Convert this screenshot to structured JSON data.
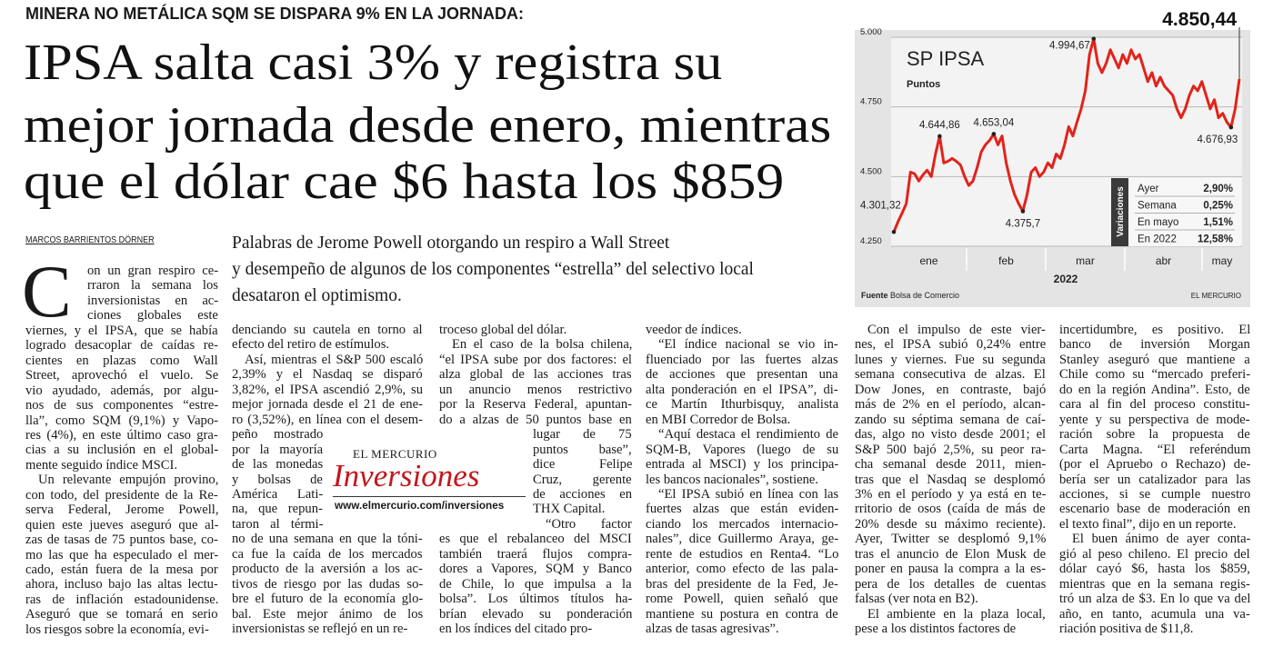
{
  "kicker": "MINERA NO METÁLICA SQM SE DISPARA 9% EN LA JORNADA:",
  "headline": [
    "IPSA salta casi 3% y registra su",
    "mejor jornada desde enero, mientras",
    "que el dólar cae $6 hasta los $859"
  ],
  "byline": "MARCOS BARRIENTOS DÖRNER",
  "deck": [
    "Palabras de Jerome Powell otorgando un respiro a Wall Street",
    "y desempeño de algunos de los componentes “estrella” del selectivo local",
    "desataron el optimismo."
  ],
  "body": {
    "drop_cap": "C",
    "columns": [
      [
        [
          "on un gran respiro ce-",
          "rraron la semana los",
          "inversionistas en ac-",
          "ciones globales este",
          "viernes, y el IPSA, que se había",
          "logrado desacoplar de caídas re-",
          "cientes en plazas como Wall",
          "Street, aprovechó el vuelo. Se",
          "vio ayudado, además, por algu-",
          "nos de sus componentes “estre-",
          "lla”, como SQM (9,1%) y Vapo-",
          "res (4%), en este último caso gra-",
          "cias a su inclusión en el global-",
          "mente seguido índice MSCI."
        ],
        [
          "Un relevante empujón provino,",
          "con todo, del presidente de la Re-",
          "serva Federal, Jerome Powell,",
          "quien este jueves aseguró que al-",
          "zas de tasas de 75 puntos base, co-",
          "mo las que ha especulado el mer-",
          "cado, están fuera de la mesa por",
          "ahora, incluso bajo las altas lectu-",
          "ras de inflación estadounidense.",
          "Aseguró que se tomará en serio",
          "los riesgos sobre la economía, evi-"
        ]
      ],
      [
        [
          "denciando su cautela en torno al",
          "efecto del retiro de estímulos."
        ],
        [
          "Así, mientras el S&P 500 escaló",
          "2,39% y el Nasdaq se disparó",
          "3,82%, el IPSA ascendió 2,9%, su",
          "mejor jornada desde el 21 de ene-",
          "ro (3,52%), en línea con el desem-",
          "peño mostrado",
          "por la mayoría",
          "de las monedas",
          "y bolsas de",
          "América Lati-",
          "na, que repun-",
          "taron al térmi-",
          "no de una semana en que la tóni-",
          "ca fue la caída de los mercados",
          "producto de la aversión a los ac-",
          "tivos de riesgo por las dudas so-",
          "bre el futuro de la economía glo-",
          "bal. Este mejor ánimo de los",
          "inversionistas se reflejó en un re-"
        ]
      ],
      [
        [
          "troceso global del dólar."
        ],
        [
          "En el caso de la bolsa chilena,",
          "“el IPSA sube por dos factores: el",
          "alza global de las acciones tras",
          "un anuncio menos restrictivo",
          "por la Reserva Federal, apuntan-",
          "do a alzas de 50 puntos base en",
          "lugar de 75",
          "puntos base”,",
          "dice Felipe",
          "Cruz, gerente",
          "de acciones en",
          "THX Capital."
        ],
        [
          "“Otro factor",
          "es que el rebalanceo del MSCI",
          "también traerá flujos compra-",
          "dores a Vapores, SQM y Banco",
          "de Chile, lo que impulsa a la",
          "bolsa”. Los últimos títulos ha-",
          "brían elevado su ponderación",
          "en los índices del citado pro-"
        ]
      ],
      [
        [
          "veedor de índices."
        ],
        [
          "“El índice nacional se vio in-",
          "fluenciado por las fuertes alzas",
          "de acciones que presentan una",
          "alta ponderación en el IPSA”, di-",
          "ce Martín Ithurbisquy, analista",
          "en MBI Corredor de Bolsa."
        ],
        [
          "“Aquí destaca el rendimiento de",
          "SQM-B, Vapores (luego de su",
          "entrada al MSCI) y los principa-",
          "les bancos nacionales”, sostiene."
        ],
        [
          "“El IPSA subió en línea con las",
          "fuertes alzas que están eviden-",
          "ciando los mercados internacio-",
          "nales”, dice Guillermo Araya, ge-",
          "rente de estudios en Renta4. “Lo",
          "anterior, como efecto de las pala-",
          "bras del presidente de la Fed, Je-",
          "rome Powell, quien señaló que",
          "mantiene su postura en contra de",
          "alzas de tasas agresivas”."
        ]
      ],
      [
        [
          "Con el impulso de este vier-",
          "nes, el IPSA subió 0,24% entre",
          "lunes y viernes. Fue su segunda",
          "semana consecutiva de alzas. El",
          "Dow Jones, en contraste, bajó",
          "más de 2% en el período, alcan-",
          "zando su séptima semana de caí-",
          "das, algo no visto desde 2001; el",
          "S&P 500 bajó 2,5%, su peor ra-",
          "cha semanal desde 2011, mien-",
          "tras que el Nasdaq se desplomó",
          "3% en el período y ya está en te-",
          "rritorio de osos (caída de más de",
          "20% desde su máximo reciente).",
          "Ayer, Twitter se desplomó 9,1%",
          "tras el anuncio de Elon Musk de",
          "poner en pausa la compra a la es-",
          "pera de los detalles de cuentas",
          "falsas (ver nota en B2)."
        ],
        [
          "El ambiente en la plaza local,",
          "pese a los distintos factores de"
        ]
      ],
      [
        [
          "incertidumbre, es positivo. El",
          "banco de inversión Morgan",
          "Stanley aseguró que mantiene a",
          "Chile como su “mercado preferi-",
          "do en la región Andina”. Esto, de",
          "cara al fin del proceso constitu-",
          "yente y su perspectiva de mode-",
          "ración sobre la propuesta de",
          "Carta Magna. “El referéndum",
          "(por el Apruebo o Rechazo) de-",
          "bería ser un catalizador para las",
          "acciones, si se cumple nuestro",
          "escenario base de moderación en",
          "el texto final”, dijo en un reporte."
        ],
        [
          "El buen ánimo de ayer conta-",
          "gió al peso chileno. El precio del",
          "dólar cayó $6, hasta los $859,",
          "mientras que en la semana regis-",
          "tró un alza de $3. En lo que va del",
          "año, en tanto, acumula una va-",
          "riación positiva de $11,8."
        ]
      ]
    ]
  },
  "promo": {
    "brand": "EL MERCURIO",
    "section": "Inversiones",
    "url": "www.elmercurio.com/inversiones"
  },
  "chart_data": {
    "type": "line",
    "title": "SP IPSA",
    "subtitle": "Puntos",
    "x_labels": [
      "ene",
      "feb",
      "mar",
      "abr",
      "may"
    ],
    "x_axis_label": "2022",
    "color": "#e2231a",
    "values": [
      4301.32,
      4338,
      4370,
      4403,
      4516,
      4510,
      4484,
      4506,
      4523,
      4500,
      4581,
      4644.86,
      4549,
      4555,
      4565,
      4555,
      4542,
      4500,
      4468,
      4484,
      4532,
      4588,
      4614,
      4630,
      4653.04,
      4614,
      4646,
      4549,
      4484,
      4435,
      4403,
      4375.7,
      4435,
      4516,
      4532,
      4500,
      4516,
      4549,
      4532,
      4581,
      4565,
      4614,
      4679,
      4646,
      4695,
      4743,
      4808,
      4938,
      4994.67,
      4906,
      4873,
      4906,
      4955,
      4922,
      4890,
      4938,
      4906,
      4955,
      4922,
      4938,
      4890,
      4841,
      4873,
      4825,
      4857,
      4825,
      4808,
      4792,
      4743,
      4711,
      4743,
      4792,
      4825,
      4808,
      4841,
      4792,
      4743,
      4776,
      4711,
      4727,
      4695,
      4676.93,
      4743,
      4850.44
    ],
    "ylim": [
      4250,
      5000
    ],
    "yticks": [
      {
        "value": 5000,
        "label": "5.000"
      },
      {
        "value": 4750,
        "label": "4.750"
      },
      {
        "value": 4500,
        "label": "4.500"
      },
      {
        "value": 4250,
        "label": "4.250"
      }
    ],
    "grid": true,
    "annotations": [
      {
        "value": 4301.32,
        "label": "4.301,32"
      },
      {
        "value": 4644.86,
        "label": "4.644,86"
      },
      {
        "value": 4653.04,
        "label": "4.653,04"
      },
      {
        "value": 4375.7,
        "label": "4.375,7"
      },
      {
        "value": 4994.67,
        "label": "4.994,67"
      },
      {
        "value": 4676.93,
        "label": "4.676,93"
      }
    ],
    "last_value_label": {
      "value": 4850.44,
      "label": "4.850,44"
    },
    "variations": {
      "title": "Variaciones",
      "rows": [
        [
          "Ayer",
          "2,90%"
        ],
        [
          "Semana",
          "0,25%"
        ],
        [
          "En mayo",
          "1,51%"
        ],
        [
          "En 2022",
          "12,58%"
        ]
      ]
    },
    "source_label": "Fuente",
    "source": "Bolsa de Comercio",
    "credit": "EL MERCURIO"
  }
}
